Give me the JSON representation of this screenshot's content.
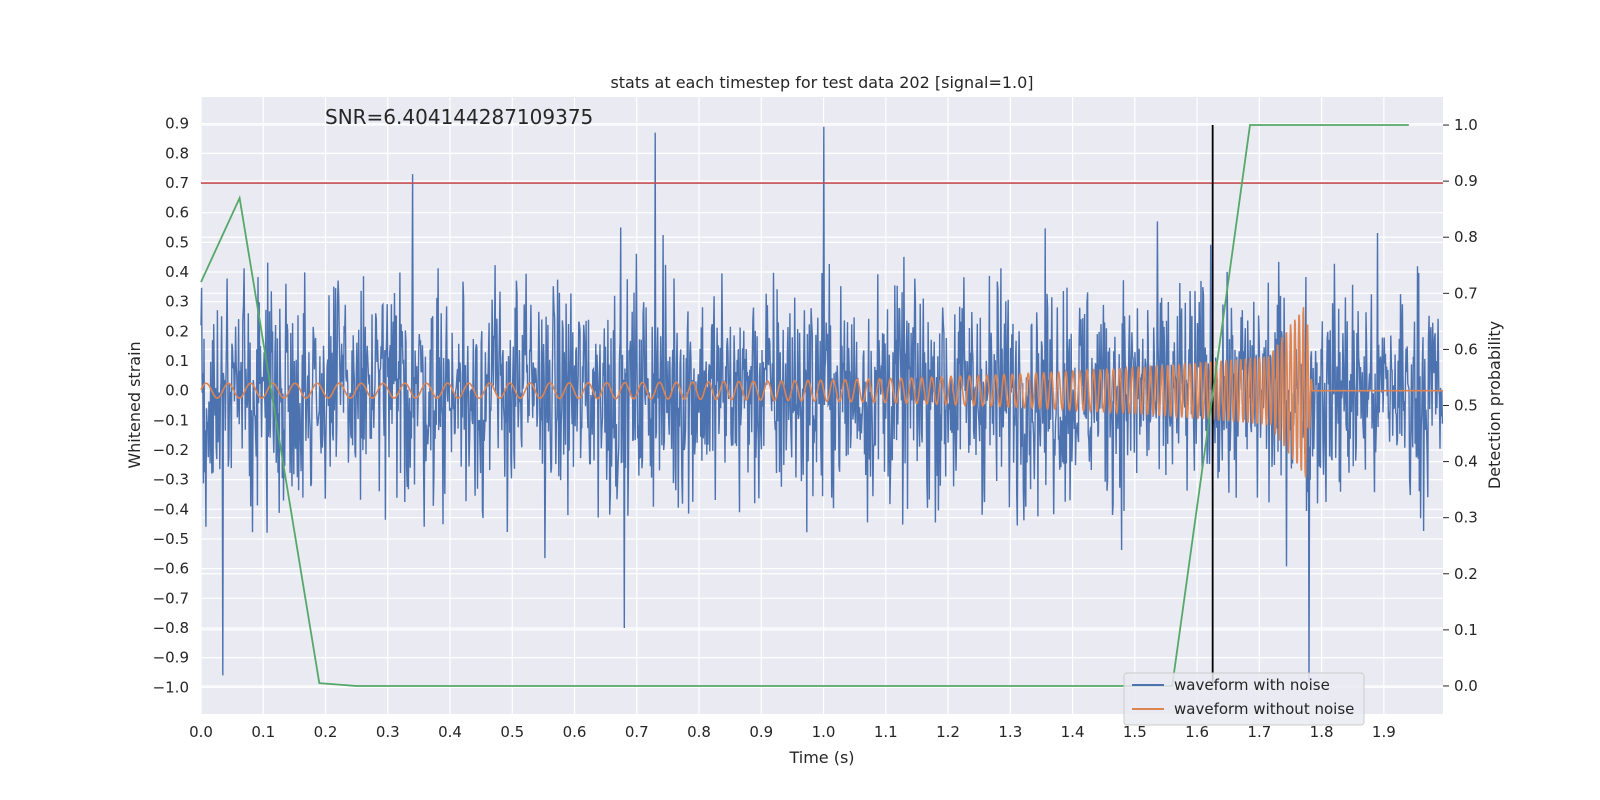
{
  "chart_data": {
    "type": "line",
    "title": "stats at each timestep for test data 202 [signal=1.0]",
    "xlabel": "Time (s)",
    "ylabel": "Whitened strain",
    "y2label": "Detection probability",
    "xlim": [
      0.0,
      1.995
    ],
    "ylim": [
      -1.09,
      0.99
    ],
    "y2lim": [
      -0.05,
      1.05
    ],
    "x_ticks": [
      0.0,
      0.1,
      0.2,
      0.3,
      0.4,
      0.5,
      0.6,
      0.7,
      0.8,
      0.9,
      1.0,
      1.1,
      1.2,
      1.3,
      1.4,
      1.5,
      1.6,
      1.7,
      1.8,
      1.9
    ],
    "x_tick_labels": [
      "0.0",
      "0.1",
      "0.2",
      "0.3",
      "0.4",
      "0.5",
      "0.6",
      "0.7",
      "0.8",
      "0.9",
      "1.0",
      "1.1",
      "1.2",
      "1.3",
      "1.4",
      "1.5",
      "1.6",
      "1.7",
      "1.8",
      "1.9"
    ],
    "y_ticks": [
      0.9,
      0.8,
      0.7,
      0.6,
      0.5,
      0.4,
      0.3,
      0.2,
      0.1,
      0.0,
      -0.1,
      -0.2,
      -0.3,
      -0.4,
      -0.5,
      -0.6,
      -0.7,
      -0.8,
      -0.9,
      -1.0
    ],
    "y_tick_labels": [
      "0.9",
      "0.8",
      "0.7",
      "0.6",
      "0.5",
      "0.4",
      "0.3",
      "0.2",
      "0.1",
      "0.0",
      "−0.1",
      "−0.2",
      "−0.3",
      "−0.4",
      "−0.5",
      "−0.6",
      "−0.7",
      "−0.8",
      "−0.9",
      "−1.0"
    ],
    "y2_ticks": [
      1.0,
      0.9,
      0.8,
      0.7,
      0.6,
      0.5,
      0.4,
      0.3,
      0.2,
      0.1,
      0.0
    ],
    "y2_tick_labels": [
      "1.0",
      "0.9",
      "0.8",
      "0.7",
      "0.6",
      "0.5",
      "0.4",
      "0.3",
      "0.2",
      "0.1",
      "0.0"
    ],
    "grid": true,
    "legend_position": "lower-right",
    "annotation": "SNR=6.404144287109375",
    "threshold_y": 0.7,
    "vline_x": 1.625,
    "series": [
      {
        "name": "waveform with noise",
        "color": "#4c72b0",
        "kind": "noisy-strain",
        "approx_amplitude_range": [
          -1.0,
          0.9
        ],
        "approx_peaks": [
          {
            "x": 0.035,
            "y": -0.96
          },
          {
            "x": 0.34,
            "y": 0.73
          },
          {
            "x": 0.73,
            "y": 0.87
          },
          {
            "x": 0.68,
            "y": -0.8
          },
          {
            "x": 1.0,
            "y": 0.89
          },
          {
            "x": 1.78,
            "y": -0.98
          }
        ]
      },
      {
        "name": "waveform without noise",
        "color": "#dd8452",
        "kind": "chirp",
        "chirp": {
          "amp_start": 0.025,
          "amp_peak": 0.3,
          "t_merger": 1.775,
          "t_ringdown_end": 1.785,
          "n_cycles_start_per_s": 28,
          "n_cycles_end_per_s": 150
        }
      },
      {
        "name": "detection probability",
        "color": "#55a868",
        "axis": "right",
        "x": [
          0.0,
          0.062,
          0.19,
          0.25,
          1.56,
          1.685,
          1.94
        ],
        "y": [
          0.72,
          0.87,
          0.005,
          0.0,
          0.0,
          1.0,
          1.0
        ]
      }
    ],
    "colors": {
      "threshold": "#c44e52",
      "vline": "#000000",
      "plot_bg": "#eaeaf2",
      "grid": "#ffffff"
    }
  }
}
